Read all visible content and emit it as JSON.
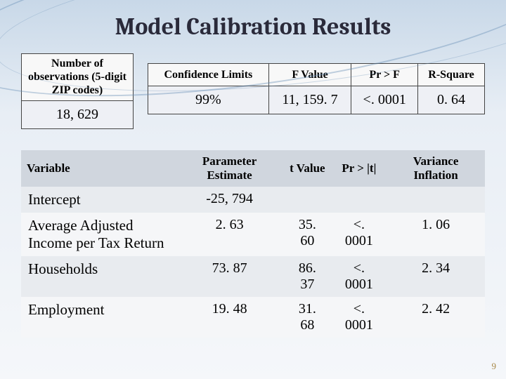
{
  "title": "Model Calibration Results",
  "observations": {
    "header": "Number of observations (5-digit ZIP codes)",
    "value": "18, 629"
  },
  "stats": {
    "columns": [
      "Confidence Limits",
      "F Value",
      "Pr > F",
      "R-Square"
    ],
    "row": [
      "99%",
      "11, 159. 7",
      "<. 0001",
      "0. 64"
    ]
  },
  "main": {
    "columns": [
      "Variable",
      "Parameter Estimate",
      "t Value",
      "Pr > |t|",
      "Variance Inflation"
    ],
    "rows": [
      {
        "variable": "Intercept",
        "pe": "-25, 794",
        "t": "",
        "p": "",
        "vif": ""
      },
      {
        "variable": "Average Adjusted Income per Tax Return",
        "pe": "2. 63",
        "t": "35. 60",
        "p": "<. 0001",
        "vif": "1. 06"
      },
      {
        "variable": "Households",
        "pe": "73. 87",
        "t": "86. 37",
        "p": "<. 0001",
        "vif": "2. 34"
      },
      {
        "variable": "Employment",
        "pe": "19. 48",
        "t": "31. 68",
        "p": "<. 0001",
        "vif": "2. 42"
      }
    ]
  },
  "slide_number": "9",
  "colors": {
    "header_band": "#d0d6de",
    "cell_even": "#e8ebef",
    "cell_odd": "#f5f6f8"
  }
}
